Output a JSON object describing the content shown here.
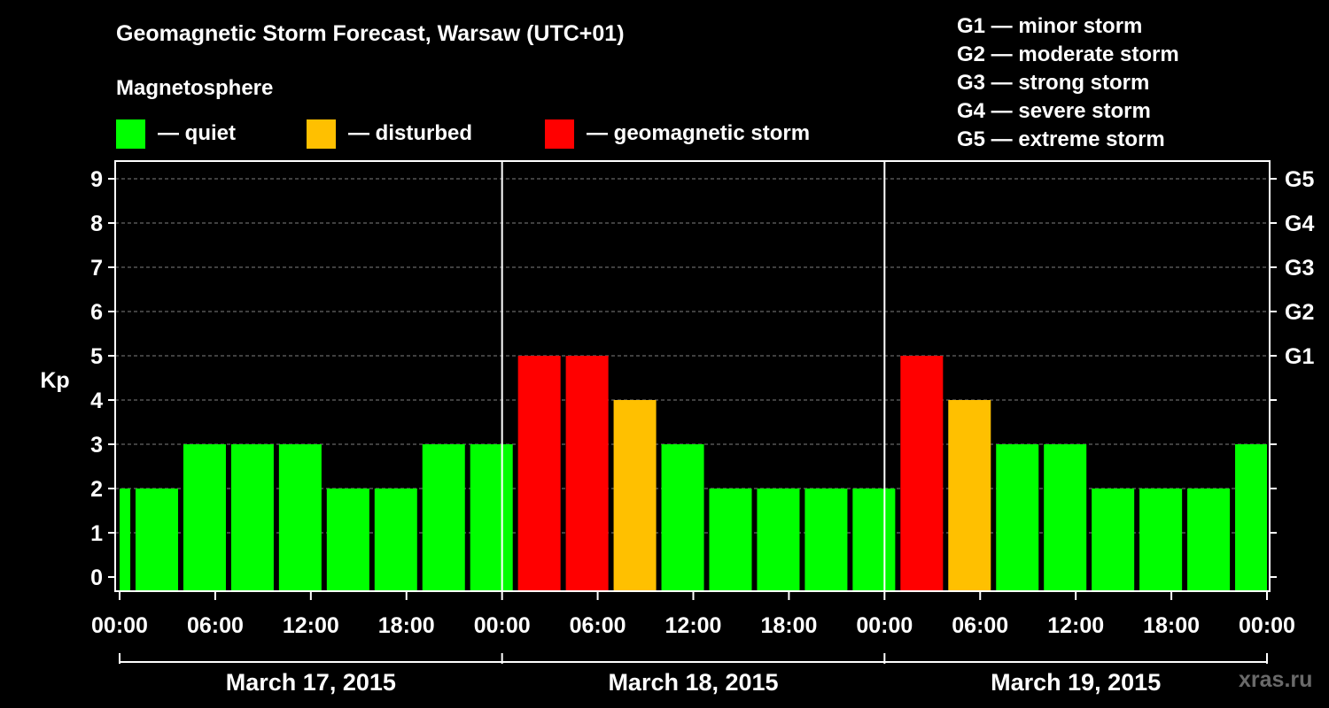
{
  "title": "Geomagnetic Storm Forecast, Warsaw (UTC+01)",
  "subtitle": "Magnetosphere",
  "legend": [
    {
      "label": "— quiet",
      "color": "#00ff00"
    },
    {
      "label": "— disturbed",
      "color": "#ffc000"
    },
    {
      "label": "— geomagnetic storm",
      "color": "#ff0000"
    }
  ],
  "storm_scale": [
    "G1 — minor storm",
    "G2 — moderate storm",
    "G3 — strong storm",
    "G4 — severe storm",
    "G5 — extreme storm"
  ],
  "watermark": "xras.ru",
  "chart_data": {
    "type": "bar",
    "title": "Geomagnetic Storm Forecast, Warsaw (UTC+01)",
    "ylabel": "Kp",
    "ylim": [
      0,
      9
    ],
    "yticks": [
      "0",
      "1",
      "2",
      "3",
      "4",
      "5",
      "6",
      "7",
      "8",
      "9"
    ],
    "right_axis": [
      {
        "kp": 5,
        "label": "G1"
      },
      {
        "kp": 6,
        "label": "G2"
      },
      {
        "kp": 7,
        "label": "G3"
      },
      {
        "kp": 8,
        "label": "G4"
      },
      {
        "kp": 9,
        "label": "G5"
      }
    ],
    "xlim_hours": [
      0,
      72
    ],
    "x_tick_labels": [
      "00:00",
      "06:00",
      "12:00",
      "18:00",
      "00:00",
      "06:00",
      "12:00",
      "18:00",
      "00:00",
      "06:00",
      "12:00",
      "18:00",
      "00:00"
    ],
    "days": [
      "March 17, 2015",
      "March 18, 2015",
      "March 19, 2015"
    ],
    "bar_start_hours": [
      -2,
      1,
      4,
      7,
      10,
      13,
      16,
      19,
      22,
      25,
      28,
      31,
      34,
      37,
      40,
      43,
      46,
      49,
      52,
      55,
      58,
      61,
      64,
      67,
      70
    ],
    "values": [
      2,
      2,
      3,
      3,
      3,
      2,
      2,
      3,
      3,
      5,
      5,
      4,
      3,
      2,
      2,
      2,
      2,
      5,
      4,
      3,
      3,
      2,
      2,
      2,
      3
    ],
    "colors": {
      "quiet": "#00ff00",
      "disturbed": "#ffc000",
      "storm": "#ff0000"
    },
    "thresholds": {
      "disturbed": 4,
      "storm": 5
    }
  }
}
